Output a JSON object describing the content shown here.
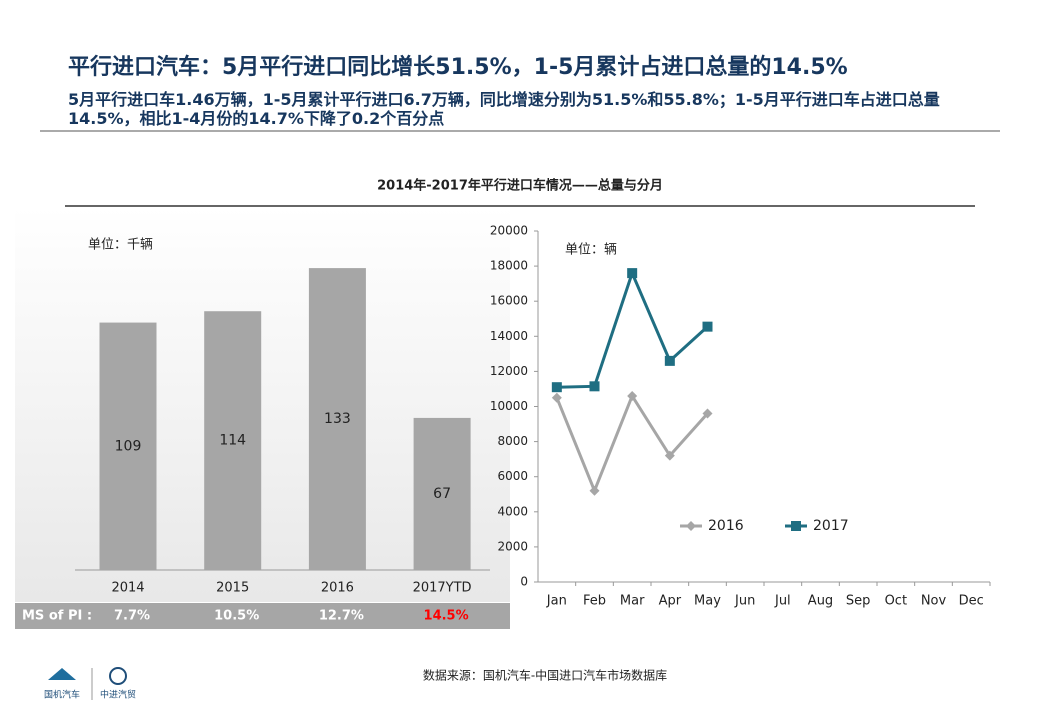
{
  "header": {
    "title": "平行进口汽车：5月平行进口同比增长51.5%，1-5月累计占进口总量的14.5%",
    "subtitle": "5月平行进口车1.46万辆，1-5月累计平行进口6.7万辆，同比增速分别为51.5%和55.8%；1-5月平行进口车占进口总量14.5%，相比1-4月份的14.7%下降了0.2个百分点"
  },
  "section_title": "2014年-2017年平行进口车情况——总量与分月",
  "chart_data": [
    {
      "type": "bar",
      "annotation": "单位：千辆",
      "categories": [
        "2014",
        "2015",
        "2016",
        "2017YTD"
      ],
      "values": [
        109,
        114,
        133,
        67
      ],
      "color": "#a6a6a6"
    },
    {
      "type": "line",
      "annotation": "单位：辆",
      "categories": [
        "Jan",
        "Feb",
        "Mar",
        "Apr",
        "May",
        "Jun",
        "Jul",
        "Aug",
        "Sep",
        "Oct",
        "Nov",
        "Dec"
      ],
      "series": [
        {
          "name": "2016",
          "color": "#a6a6a6",
          "marker": "diamond",
          "values": [
            10500,
            5200,
            10600,
            7200,
            9600,
            null,
            null,
            null,
            null,
            null,
            null,
            null
          ]
        },
        {
          "name": "2017",
          "color": "#1f6e82",
          "marker": "square",
          "values": [
            11100,
            11150,
            17600,
            12600,
            14550,
            null,
            null,
            null,
            null,
            null,
            null,
            null
          ]
        }
      ],
      "ylim": [
        0,
        20000
      ],
      "yticks": [
        0,
        2000,
        4000,
        6000,
        8000,
        10000,
        12000,
        14000,
        16000,
        18000,
        20000
      ],
      "legend": "lower center"
    }
  ],
  "market_share": {
    "label": "MS of PI :",
    "values": [
      "7.7%",
      "10.5%",
      "12.7%",
      "14.5%"
    ],
    "colors": [
      "#ffffff",
      "#ffffff",
      "#ffffff",
      "#ff0000"
    ]
  },
  "source": "数据来源：国机汽车-中国进口汽车市场数据库",
  "logos": [
    "国机汽车",
    "中进汽贸"
  ]
}
